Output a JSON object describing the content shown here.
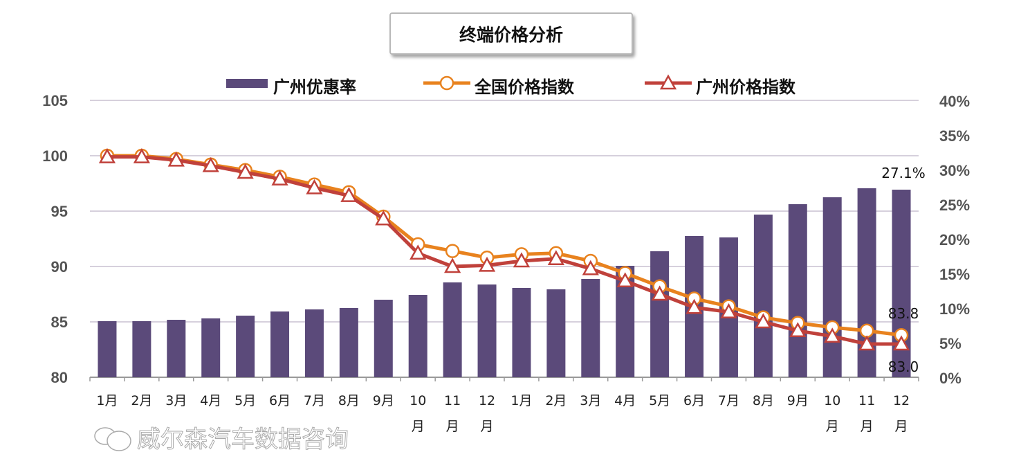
{
  "chart_data": {
    "type": "bar+line",
    "title": "终端价格分析",
    "categories": [
      "1月",
      "2月",
      "3月",
      "4月",
      "5月",
      "6月",
      "7月",
      "8月",
      "9月",
      "10月",
      "11月",
      "12月",
      "1月",
      "2月",
      "3月",
      "4月",
      "5月",
      "6月",
      "7月",
      "8月",
      "9月",
      "10月",
      "11月",
      "12月"
    ],
    "left_axis": {
      "ylim": [
        80,
        105
      ],
      "ticks": [
        "80",
        "85",
        "90",
        "95",
        "100",
        "105"
      ]
    },
    "right_axis": {
      "ylim": [
        0,
        40
      ],
      "ticks": [
        "0%",
        "5%",
        "10%",
        "15%",
        "20%",
        "25%",
        "30%",
        "35%",
        "40%"
      ]
    },
    "grid": true,
    "legend_position": "top",
    "series": [
      {
        "name": "广州优惠率",
        "type": "bar",
        "axis": "right",
        "color": "#5b4a7a",
        "values": [
          8.1,
          8.1,
          8.3,
          8.5,
          8.9,
          9.5,
          9.8,
          10.0,
          11.2,
          11.9,
          13.7,
          13.4,
          12.9,
          12.7,
          14.2,
          16.1,
          18.2,
          20.4,
          20.2,
          23.5,
          25.0,
          26.0,
          27.3,
          27.1
        ]
      },
      {
        "name": "全国价格指数",
        "type": "line",
        "axis": "left",
        "color": "#e8821e",
        "marker": "circle",
        "values": [
          100,
          100,
          99.7,
          99.2,
          98.7,
          98.1,
          97.4,
          96.7,
          94.5,
          92.0,
          91.4,
          90.8,
          91.1,
          91.2,
          90.5,
          89.4,
          88.2,
          87.1,
          86.4,
          85.4,
          84.9,
          84.5,
          84.2,
          83.8
        ]
      },
      {
        "name": "广州价格指数",
        "type": "line",
        "axis": "left",
        "color": "#c0413b",
        "marker": "triangle",
        "values": [
          99.9,
          99.9,
          99.6,
          99.1,
          98.5,
          97.9,
          97.1,
          96.4,
          94.3,
          91.2,
          90.0,
          90.1,
          90.5,
          90.7,
          89.8,
          88.7,
          87.5,
          86.3,
          85.9,
          85.0,
          84.2,
          83.7,
          83.0,
          83.0
        ]
      }
    ],
    "annotations": [
      "27.1%",
      "83.8",
      "83.0"
    ]
  },
  "watermark": "威尔森汽车数据咨询"
}
